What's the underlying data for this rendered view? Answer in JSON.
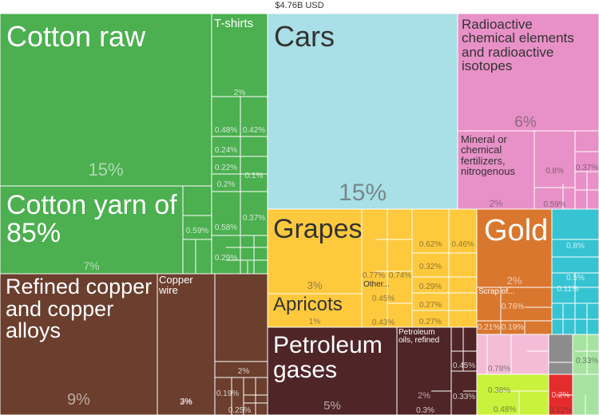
{
  "chart_data": {
    "type": "treemap",
    "total": "$4.76B USD",
    "colors": {
      "textiles": "#4caf50",
      "metals": "#6b3e2e",
      "vehicles": "#a9dfe6",
      "chemicals": "#e890c8",
      "vegetable": "#ffc93d",
      "mineral": "#4f2527",
      "precious": "#d9772f",
      "machinery": "#36c4d2",
      "animal": "#f5bcd8",
      "misc_gray": "#8c8c8c",
      "misc_lime": "#c8f23c",
      "misc_red": "#e52c2c",
      "misc_lightgreen": "#a6e3a0"
    },
    "items": [
      {
        "label": "Cotton raw",
        "pct": "15%"
      },
      {
        "label": "T-shirts",
        "pct": ""
      },
      {
        "label": "Cotton yarn of\n85%",
        "pct": "7%"
      },
      {
        "label": "Refined copper\nand copper\nalloys",
        "pct": "9%"
      },
      {
        "label": "Copper\nwire",
        "pct": "3%"
      },
      {
        "label": "Cars",
        "pct": "15%"
      },
      {
        "label": "Radioactive\nchemical elements\nand radioactive\nisotopes",
        "pct": "6%"
      },
      {
        "label": "Mineral or\nchemical\nfertilizers,\nnitrogenous",
        "pct": "2%"
      },
      {
        "label": "Grapes",
        "pct": "3%"
      },
      {
        "label": "Apricots",
        "pct": "1%"
      },
      {
        "label": "Other...",
        "pct": ""
      },
      {
        "label": "Gold",
        "pct": "2%"
      },
      {
        "label": "Scrap of...",
        "pct": ""
      },
      {
        "label": "Petroleum\ngases",
        "pct": "5%"
      },
      {
        "label": "Petroleum\noils, refined",
        "pct": "2%"
      }
    ],
    "small_labels": [
      "2%",
      "0.48%",
      "0.42%",
      "0.24%",
      "0.22%",
      "0.1%",
      "0.2%",
      "0.37%",
      "0.59%",
      "0.58%",
      "0.29%",
      "2%",
      "0.19%",
      "0.25%",
      "3%",
      "0.8%",
      "0.37%",
      "0.59%",
      "0.77%",
      "0.74%",
      "0.45%",
      "0.43%",
      "0.62%",
      "0.46%",
      "0.32%",
      "0.29%",
      "0.27%",
      "0.27%",
      "0.76%",
      "0.21%",
      "0.19%",
      "0.8%",
      "0.5%",
      "0.11%",
      "0.78%",
      "0.38%",
      "0.48%",
      "0.33%",
      "0.2%",
      "0.12%",
      "0.45%",
      "0.33%",
      "0.3%"
    ]
  }
}
